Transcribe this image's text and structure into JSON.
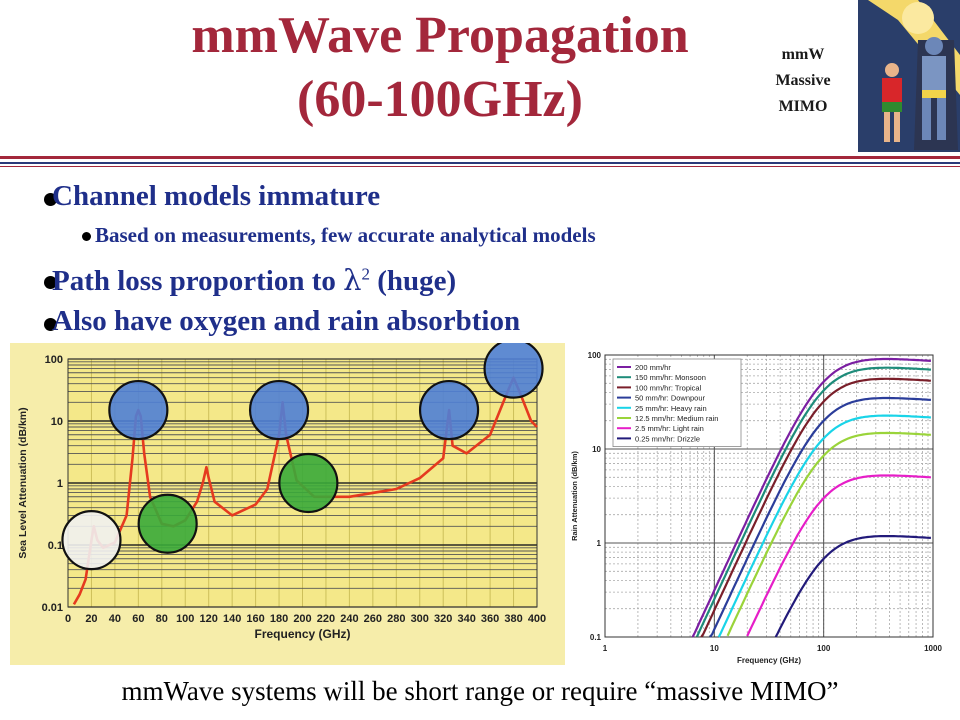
{
  "title": {
    "line1": "mmWave Propagation",
    "line2": "(60-100GHz)"
  },
  "badge": {
    "line1": "mmW",
    "line2": "Massive",
    "line3": "MIMO"
  },
  "bullets": {
    "b1": "Channel models immature",
    "b1_sub": "Based on measurements, few accurate analytical models",
    "b2_prefix": "Path loss proportion to ",
    "b2_symbol": "λ",
    "b2_exp": "2",
    "b2_suffix": " (huge)",
    "b3": "Also have oxygen and rain absorbtion"
  },
  "footer": "mmWave systems will be short range or require “massive MIMO”",
  "colors": {
    "accent": "#a3273b",
    "bullet": "#1f2f8a",
    "plot_bg": "#f4e889",
    "curve": "#e53a1f"
  },
  "chart_data": [
    {
      "type": "line",
      "title": "",
      "xlabel": "Frequency (GHz)",
      "ylabel": "Sea Level Attenuation (dB/km)",
      "yscale": "log",
      "xlim": [
        0,
        400
      ],
      "ylim": [
        0.01,
        100
      ],
      "grid": true,
      "x_ticks": [
        "0",
        "20",
        "40",
        "60",
        "80",
        "100",
        "120",
        "140",
        "160",
        "180",
        "200",
        "220",
        "240",
        "260",
        "280",
        "300",
        "320",
        "340",
        "360",
        "380",
        "400"
      ],
      "y_ticks": [
        "0.01",
        "0.1",
        "1",
        "10",
        "100"
      ],
      "series": [
        {
          "values": [
            [
              5,
              0.011
            ],
            [
              10,
              0.016
            ],
            [
              15,
              0.028
            ],
            [
              20,
              0.12
            ],
            [
              22,
              0.2
            ],
            [
              25,
              0.12
            ],
            [
              30,
              0.09
            ],
            [
              40,
              0.11
            ],
            [
              50,
              0.3
            ],
            [
              55,
              2.5
            ],
            [
              58,
              12
            ],
            [
              60,
              15
            ],
            [
              62,
              12
            ],
            [
              65,
              3
            ],
            [
              70,
              0.6
            ],
            [
              80,
              0.22
            ],
            [
              90,
              0.2
            ],
            [
              100,
              0.25
            ],
            [
              110,
              0.5
            ],
            [
              115,
              1
            ],
            [
              118,
              1.8
            ],
            [
              120,
              1.2
            ],
            [
              125,
              0.5
            ],
            [
              140,
              0.3
            ],
            [
              160,
              0.45
            ],
            [
              170,
              0.8
            ],
            [
              180,
              6
            ],
            [
              183,
              20
            ],
            [
              186,
              6
            ],
            [
              195,
              1.1
            ],
            [
              210,
              0.6
            ],
            [
              240,
              0.6
            ],
            [
              280,
              0.8
            ],
            [
              300,
              1.2
            ],
            [
              320,
              2.5
            ],
            [
              325,
              15
            ],
            [
              328,
              4
            ],
            [
              340,
              3
            ],
            [
              360,
              6
            ],
            [
              375,
              30
            ],
            [
              380,
              50
            ],
            [
              385,
              30
            ],
            [
              395,
              10
            ],
            [
              400,
              8
            ]
          ]
        }
      ],
      "markers": [
        {
          "x": 20,
          "y": 0.12,
          "color": "#f1f1f1"
        },
        {
          "x": 60,
          "y": 15,
          "color": "#4f7fd6"
        },
        {
          "x": 85,
          "y": 0.22,
          "color": "#3aaa3a"
        },
        {
          "x": 180,
          "y": 15,
          "color": "#4f7fd6"
        },
        {
          "x": 205,
          "y": 1.0,
          "color": "#3aaa3a"
        },
        {
          "x": 325,
          "y": 15,
          "color": "#4f7fd6"
        },
        {
          "x": 380,
          "y": 70,
          "color": "#4f7fd6"
        }
      ]
    },
    {
      "type": "line",
      "title": "",
      "xlabel": "Frequency (GHz)",
      "ylabel": "Rain Attenuation (dB/km)",
      "xscale": "log",
      "yscale": "log",
      "xlim": [
        1,
        1000
      ],
      "ylim": [
        0.1,
        100
      ],
      "grid": true,
      "x_ticks": [
        "1",
        "10",
        "100",
        "1000"
      ],
      "y_ticks": [
        "0.1",
        "1",
        "10",
        "100"
      ],
      "legend_position": "top-left",
      "series": [
        {
          "name": "200 mm/hr",
          "color": "#7b1fa2",
          "peak": 52
        },
        {
          "name": "150 mm/hr: Monsoon",
          "color": "#1e8c7a",
          "peak": 42
        },
        {
          "name": "100 mm/hr: Tropical",
          "color": "#7a1f2a",
          "peak": 32
        },
        {
          "name": "50 mm/hr: Downpour",
          "color": "#2b3d9a",
          "peak": 20
        },
        {
          "name": "25 mm/hr: Heavy rain",
          "color": "#19d4e8",
          "peak": 13
        },
        {
          "name": "12.5 mm/hr: Medium rain",
          "color": "#9ad43a",
          "peak": 8.5
        },
        {
          "name": "2.5 mm/hr: Light rain",
          "color": "#e61ec8",
          "peak": 3
        },
        {
          "name": "0.25 mm/hr: Drizzle",
          "color": "#221a7a",
          "peak": 0.68
        }
      ]
    }
  ]
}
